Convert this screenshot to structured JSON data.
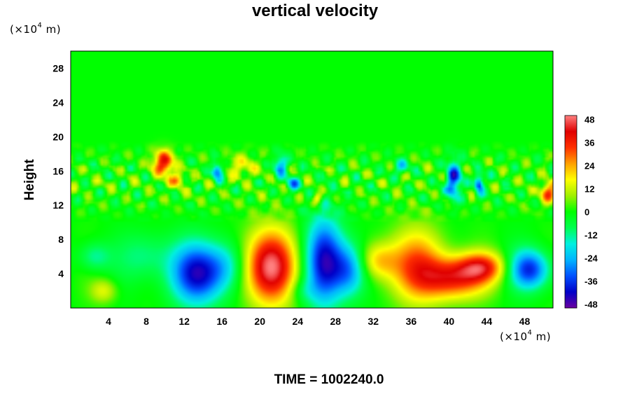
{
  "chart_data": {
    "type": "heatmap",
    "title": "vertical velocity",
    "ylabel": "Height",
    "x_unit_prefix": "(×10",
    "x_unit_exp": "4",
    "x_unit_suffix": " m)",
    "y_unit_prefix": "(×10",
    "y_unit_exp": "4",
    "y_unit_suffix": " m)",
    "footer": "TIME = 1002240.0",
    "xlim": [
      0,
      51
    ],
    "ylim": [
      0,
      30
    ],
    "x_ticks": [
      4,
      8,
      12,
      16,
      20,
      24,
      28,
      32,
      36,
      40,
      44,
      48
    ],
    "y_ticks": [
      4,
      8,
      12,
      16,
      20,
      24,
      28
    ],
    "colorbar": {
      "range": [
        -50,
        50
      ],
      "ticks": [
        48,
        36,
        24,
        12,
        0,
        -12,
        -24,
        -36,
        -48
      ],
      "colors": [
        "#6a00a0",
        "#0000c8",
        "#0050ff",
        "#00b4ff",
        "#00f0e0",
        "#00ff50",
        "#00ff00",
        "#a0f000",
        "#ffff00",
        "#ffa000",
        "#ff3000",
        "#e00000",
        "#ff8080"
      ]
    },
    "features": [
      {
        "x": 21.0,
        "y": 4.8,
        "value": 50,
        "sx": 1.9,
        "sy": 3.0
      },
      {
        "x": 40.5,
        "y": 3.5,
        "value": 36,
        "sx": 2.5,
        "sy": 1.7
      },
      {
        "x": 36.5,
        "y": 5.0,
        "value": 28,
        "sx": 2.2,
        "sy": 3.0
      },
      {
        "x": 32.5,
        "y": 5.5,
        "value": 20,
        "sx": 1.5,
        "sy": 1.5
      },
      {
        "x": 43.5,
        "y": 4.8,
        "value": 30,
        "sx": 1.8,
        "sy": 1.2
      },
      {
        "x": 13.5,
        "y": 4.0,
        "value": -42,
        "sx": 2.0,
        "sy": 2.5
      },
      {
        "x": 26.8,
        "y": 5.5,
        "value": -40,
        "sx": 1.4,
        "sy": 3.6
      },
      {
        "x": 29.5,
        "y": 4.5,
        "value": -30,
        "sx": 1.3,
        "sy": 2.2
      },
      {
        "x": 48.5,
        "y": 4.5,
        "value": -38,
        "sx": 1.5,
        "sy": 1.6
      },
      {
        "x": 9.8,
        "y": 17.0,
        "value": 40,
        "sx": 0.8,
        "sy": 1.0
      },
      {
        "x": 11.3,
        "y": 15.0,
        "value": 24,
        "sx": 0.6,
        "sy": 0.6
      },
      {
        "x": 50.5,
        "y": 13.5,
        "value": 32,
        "sx": 0.6,
        "sy": 0.8
      },
      {
        "x": 15.5,
        "y": 16.0,
        "value": -38,
        "sx": 0.4,
        "sy": 0.7
      },
      {
        "x": 22.2,
        "y": 16.5,
        "value": -26,
        "sx": 0.5,
        "sy": 1.0
      },
      {
        "x": 23.5,
        "y": 14.5,
        "value": -24,
        "sx": 0.5,
        "sy": 0.6
      },
      {
        "x": 40.5,
        "y": 15.0,
        "value": -36,
        "sx": 0.6,
        "sy": 1.6
      },
      {
        "x": 43.2,
        "y": 14.5,
        "value": -34,
        "sx": 0.35,
        "sy": 0.9
      },
      {
        "x": 35.0,
        "y": 16.5,
        "value": -22,
        "sx": 0.5,
        "sy": 0.6
      },
      {
        "x": 26.0,
        "y": 12.8,
        "value": 22,
        "sx": 0.4,
        "sy": 0.5
      },
      {
        "x": 18.0,
        "y": 16.5,
        "value": 14,
        "sx": 1.2,
        "sy": 1.0
      },
      {
        "x": 3.5,
        "y": 2.0,
        "value": 14,
        "sx": 1.0,
        "sy": 1.0
      },
      {
        "x": 2.5,
        "y": 6.0,
        "value": -14,
        "sx": 1.2,
        "sy": 1.2
      },
      {
        "x": 16.5,
        "y": 5.0,
        "value": -14,
        "sx": 1.5,
        "sy": 2.0
      },
      {
        "x": 8.0,
        "y": 6.0,
        "value": -12,
        "sx": 2.0,
        "sy": 2.0
      },
      {
        "x": 24.5,
        "y": 2.0,
        "value": -8,
        "sx": 1.0,
        "sy": 1.0
      }
    ]
  }
}
